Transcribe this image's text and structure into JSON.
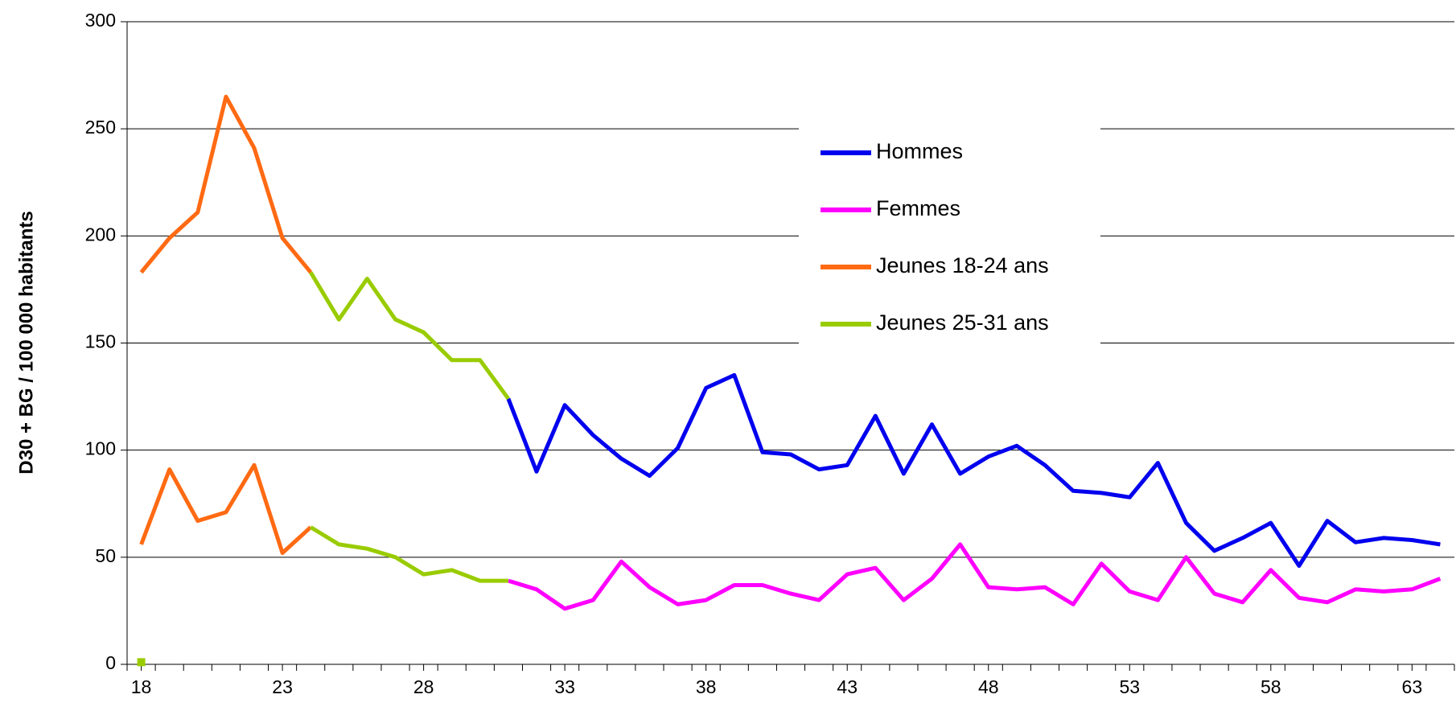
{
  "chart_data": {
    "type": "line",
    "ylabel": "D30 + BG / 100 000 habitants",
    "x": [
      18,
      19,
      20,
      21,
      22,
      23,
      24,
      25,
      26,
      27,
      28,
      29,
      30,
      31,
      32,
      33,
      34,
      35,
      36,
      37,
      38,
      39,
      40,
      41,
      42,
      43,
      44,
      45,
      46,
      47,
      48,
      49,
      50,
      51,
      52,
      53,
      54,
      55,
      56,
      57,
      58,
      59,
      60,
      61,
      62,
      63,
      64
    ],
    "xlim": [
      17.5,
      64.5
    ],
    "xticks": [
      18,
      23,
      28,
      33,
      38,
      43,
      48,
      53,
      58,
      63
    ],
    "ylim": [
      0,
      300
    ],
    "yticks": [
      0,
      50,
      100,
      150,
      200,
      250,
      300
    ],
    "grid": true,
    "legend": "upper right",
    "series": [
      {
        "name": "Hommes",
        "color": "#0000ee",
        "lines": [
          [
            null,
            null,
            null,
            null,
            null,
            null,
            null,
            null,
            null,
            null,
            null,
            null,
            null,
            124,
            90,
            121,
            107,
            96,
            88,
            101,
            129,
            135,
            99,
            98,
            91,
            93,
            116,
            89,
            112,
            89,
            97,
            102,
            93,
            81,
            80,
            78,
            94,
            66,
            53,
            59,
            66,
            46,
            67,
            57,
            59,
            58,
            56
          ]
        ]
      },
      {
        "name": "Femmes",
        "color": "#ff00ff",
        "lines": [
          [
            null,
            null,
            null,
            null,
            null,
            null,
            null,
            null,
            null,
            null,
            null,
            null,
            null,
            39,
            35,
            26,
            30,
            48,
            36,
            28,
            30,
            37,
            37,
            33,
            30,
            42,
            45,
            30,
            40,
            56,
            36,
            35,
            36,
            28,
            47,
            34,
            30,
            50,
            33,
            29,
            44,
            31,
            29,
            35,
            34,
            35,
            40
          ]
        ]
      },
      {
        "name": "Jeunes 18-24 ans",
        "color": "#ff6a13",
        "lines": [
          [
            183,
            199,
            211,
            265,
            241,
            199,
            183,
            null,
            null,
            null,
            null,
            null,
            null,
            null,
            null,
            null,
            null,
            null,
            null,
            null,
            null,
            null,
            null,
            null,
            null,
            null,
            null,
            null,
            null,
            null,
            null,
            null,
            null,
            null,
            null,
            null,
            null,
            null,
            null,
            null,
            null,
            null,
            null,
            null,
            null,
            null,
            null
          ],
          [
            56,
            91,
            67,
            71,
            93,
            52,
            64,
            null,
            null,
            null,
            null,
            null,
            null,
            null,
            null,
            null,
            null,
            null,
            null,
            null,
            null,
            null,
            null,
            null,
            null,
            null,
            null,
            null,
            null,
            null,
            null,
            null,
            null,
            null,
            null,
            null,
            null,
            null,
            null,
            null,
            null,
            null,
            null,
            null,
            null,
            null,
            null
          ]
        ]
      },
      {
        "name": "Jeunes 25-31 ans",
        "color": "#99cc00",
        "lines": [
          [
            null,
            null,
            null,
            null,
            null,
            null,
            183,
            161,
            180,
            161,
            155,
            142,
            142,
            124,
            null,
            null,
            null,
            null,
            null,
            null,
            null,
            null,
            null,
            null,
            null,
            null,
            null,
            null,
            null,
            null,
            null,
            null,
            null,
            null,
            null,
            null,
            null,
            null,
            null,
            null,
            null,
            null,
            null,
            null,
            null,
            null,
            null
          ],
          [
            null,
            null,
            null,
            null,
            null,
            null,
            64,
            56,
            54,
            50,
            42,
            44,
            39,
            39,
            null,
            null,
            null,
            null,
            null,
            null,
            null,
            null,
            null,
            null,
            null,
            null,
            null,
            null,
            null,
            null,
            null,
            null,
            null,
            null,
            null,
            null,
            null,
            null,
            null,
            null,
            null,
            null,
            null,
            null,
            null,
            null,
            null
          ],
          [
            1,
            null,
            null,
            null,
            null,
            null,
            null,
            null,
            null,
            null,
            null,
            null,
            null,
            null,
            null,
            null,
            null,
            null,
            null,
            null,
            null,
            null,
            null,
            null,
            null,
            null,
            null,
            null,
            null,
            null,
            null,
            null,
            null,
            null,
            null,
            null,
            null,
            null,
            null,
            null,
            null,
            null,
            null,
            null,
            null,
            null,
            null
          ]
        ]
      }
    ]
  }
}
